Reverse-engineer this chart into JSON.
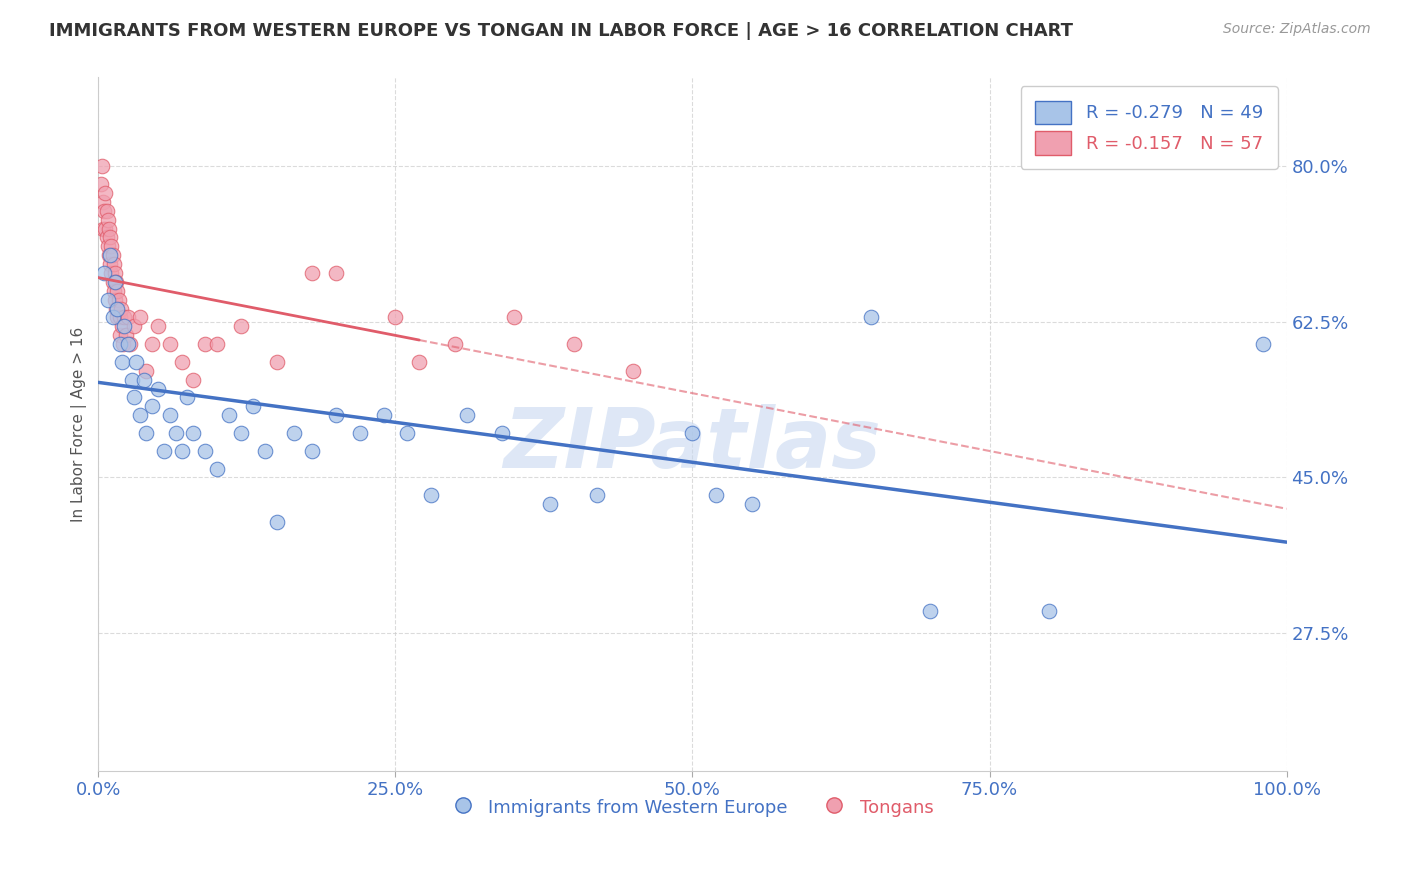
{
  "title": "IMMIGRANTS FROM WESTERN EUROPE VS TONGAN IN LABOR FORCE | AGE > 16 CORRELATION CHART",
  "source_text": "Source: ZipAtlas.com",
  "ylabel": "In Labor Force | Age > 16",
  "xlim": [
    0.0,
    1.0
  ],
  "ylim": [
    0.12,
    0.9
  ],
  "yticks": [
    0.275,
    0.45,
    0.625,
    0.8
  ],
  "ytick_labels": [
    "27.5%",
    "45.0%",
    "62.5%",
    "80.0%"
  ],
  "xticks": [
    0.0,
    0.25,
    0.5,
    0.75,
    1.0
  ],
  "xtick_labels": [
    "0.0%",
    "25.0%",
    "50.0%",
    "75.0%",
    "100.0%"
  ],
  "blue_R": -0.279,
  "blue_N": 49,
  "pink_R": -0.157,
  "pink_N": 57,
  "blue_label": "Immigrants from Western Europe",
  "pink_label": "Tongans",
  "watermark": "ZIPatlas",
  "blue_scatter_x": [
    0.005,
    0.008,
    0.01,
    0.012,
    0.014,
    0.016,
    0.018,
    0.02,
    0.022,
    0.025,
    0.028,
    0.03,
    0.032,
    0.035,
    0.038,
    0.04,
    0.045,
    0.05,
    0.055,
    0.06,
    0.065,
    0.07,
    0.075,
    0.08,
    0.09,
    0.1,
    0.11,
    0.12,
    0.13,
    0.14,
    0.15,
    0.165,
    0.18,
    0.2,
    0.22,
    0.24,
    0.26,
    0.28,
    0.31,
    0.34,
    0.38,
    0.42,
    0.5,
    0.52,
    0.55,
    0.65,
    0.7,
    0.8,
    0.98
  ],
  "blue_scatter_y": [
    0.68,
    0.65,
    0.7,
    0.63,
    0.67,
    0.64,
    0.6,
    0.58,
    0.62,
    0.6,
    0.56,
    0.54,
    0.58,
    0.52,
    0.56,
    0.5,
    0.53,
    0.55,
    0.48,
    0.52,
    0.5,
    0.48,
    0.54,
    0.5,
    0.48,
    0.46,
    0.52,
    0.5,
    0.53,
    0.48,
    0.4,
    0.5,
    0.48,
    0.52,
    0.5,
    0.52,
    0.5,
    0.43,
    0.52,
    0.5,
    0.42,
    0.43,
    0.5,
    0.43,
    0.42,
    0.63,
    0.3,
    0.3,
    0.6
  ],
  "pink_scatter_x": [
    0.002,
    0.003,
    0.004,
    0.004,
    0.005,
    0.006,
    0.006,
    0.007,
    0.007,
    0.008,
    0.008,
    0.009,
    0.009,
    0.01,
    0.01,
    0.011,
    0.011,
    0.012,
    0.012,
    0.013,
    0.013,
    0.014,
    0.014,
    0.015,
    0.015,
    0.016,
    0.016,
    0.017,
    0.018,
    0.018,
    0.019,
    0.02,
    0.021,
    0.022,
    0.023,
    0.025,
    0.027,
    0.03,
    0.035,
    0.04,
    0.045,
    0.05,
    0.06,
    0.07,
    0.08,
    0.09,
    0.1,
    0.12,
    0.15,
    0.18,
    0.2,
    0.25,
    0.27,
    0.3,
    0.35,
    0.4,
    0.45
  ],
  "pink_scatter_y": [
    0.78,
    0.8,
    0.76,
    0.73,
    0.75,
    0.77,
    0.73,
    0.75,
    0.72,
    0.74,
    0.71,
    0.73,
    0.7,
    0.72,
    0.69,
    0.71,
    0.68,
    0.7,
    0.67,
    0.69,
    0.66,
    0.68,
    0.65,
    0.67,
    0.64,
    0.66,
    0.63,
    0.65,
    0.63,
    0.61,
    0.64,
    0.62,
    0.6,
    0.63,
    0.61,
    0.63,
    0.6,
    0.62,
    0.63,
    0.57,
    0.6,
    0.62,
    0.6,
    0.58,
    0.56,
    0.6,
    0.6,
    0.62,
    0.58,
    0.68,
    0.68,
    0.63,
    0.58,
    0.6,
    0.63,
    0.6,
    0.57
  ],
  "blue_line_color": "#4472C4",
  "pink_line_color": "#E05C6A",
  "blue_scatter_color": "#A8C4E8",
  "pink_scatter_color": "#F0A0B0",
  "grid_color": "#CCCCCC",
  "title_color": "#333333",
  "axis_label_color": "#555555",
  "ytick_label_color": "#4472C4",
  "xtick_label_color": "#4472C4",
  "source_color": "#999999",
  "watermark_color": "#C8D8F0",
  "legend_blue_text": "R = -0.279   N = 49",
  "legend_pink_text": "R = -0.157   N = 57"
}
